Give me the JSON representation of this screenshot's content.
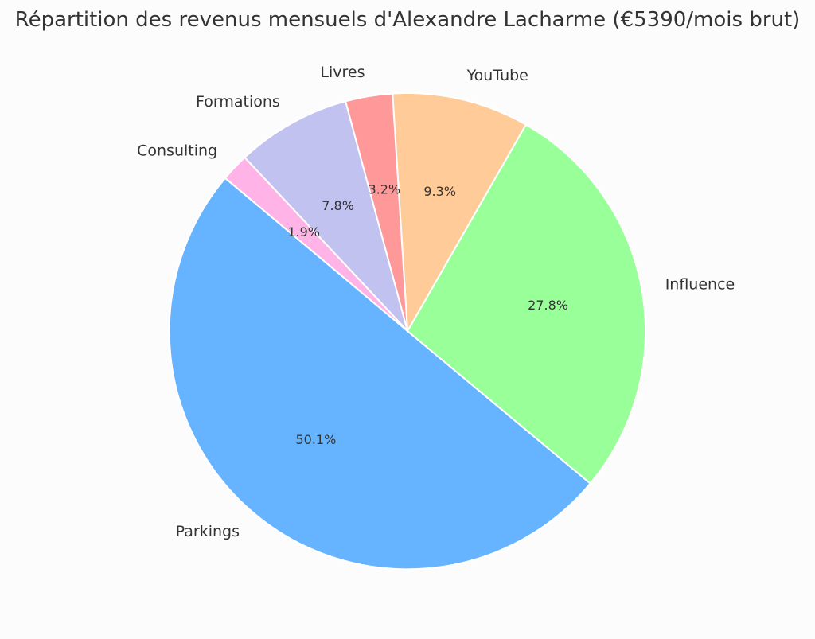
{
  "chart_data": {
    "type": "pie",
    "title": "Répartition des revenus mensuels d'Alexandre Lacharme (€5390/mois brut)",
    "slices": [
      {
        "label": "Parkings",
        "value": 50.1,
        "pct_label": "50.1%",
        "color": "#66b3ff"
      },
      {
        "label": "Influence",
        "value": 27.8,
        "pct_label": "27.8%",
        "color": "#99ff99"
      },
      {
        "label": "YouTube",
        "value": 9.3,
        "pct_label": "9.3%",
        "color": "#ffcc99"
      },
      {
        "label": "Livres",
        "value": 3.2,
        "pct_label": "3.2%",
        "color": "#ff9999"
      },
      {
        "label": "Formations",
        "value": 7.8,
        "pct_label": "7.8%",
        "color": "#c2c2f0"
      },
      {
        "label": "Consulting",
        "value": 1.9,
        "pct_label": "1.9%",
        "color": "#ffb3e6"
      }
    ],
    "edge_color": "#ffffff",
    "text_color": "#333333"
  }
}
